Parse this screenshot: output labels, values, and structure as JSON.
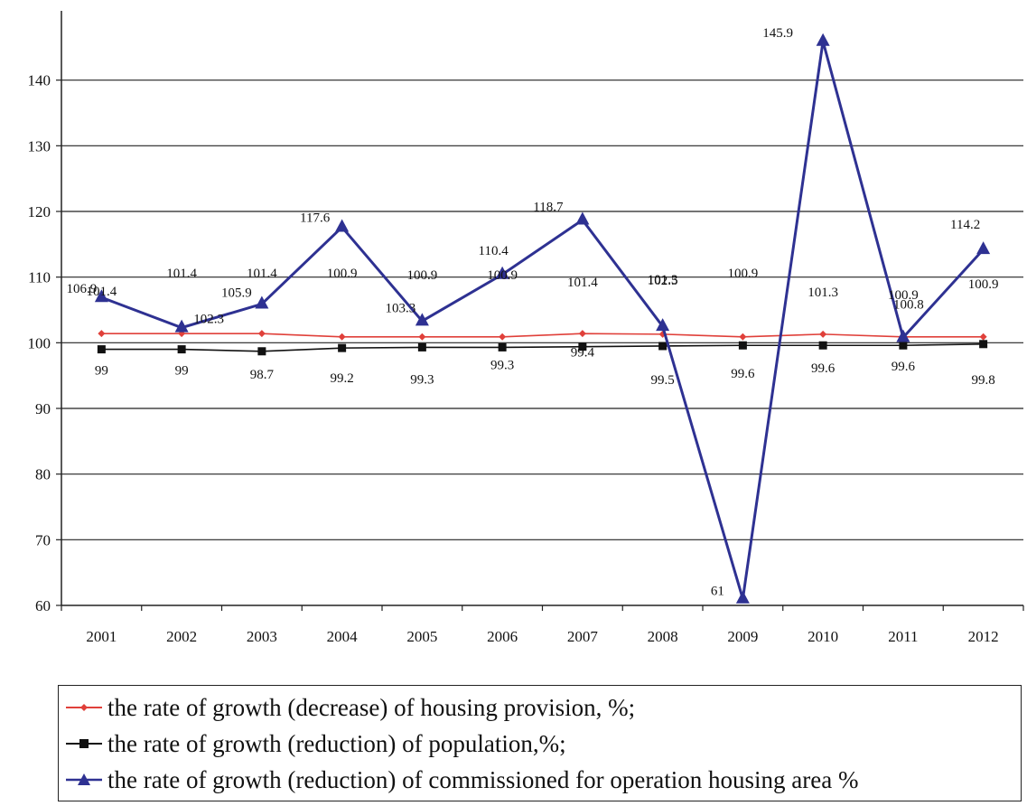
{
  "chart_data": {
    "type": "line",
    "categories": [
      "2001",
      "2002",
      "2003",
      "2004",
      "2005",
      "2006",
      "2007",
      "2008",
      "2009",
      "2010",
      "2011",
      "2012"
    ],
    "ylim": [
      60,
      150
    ],
    "yticks": [
      60,
      70,
      80,
      90,
      100,
      110,
      120,
      130,
      140
    ],
    "grid": true,
    "legend_position": "bottom",
    "series": [
      {
        "name": "the rate of growth (decrease) of housing provision, %;",
        "color": "#e0403a",
        "marker": "diamond",
        "values": [
          101.4,
          101.4,
          101.4,
          100.9,
          100.9,
          100.9,
          101.4,
          101.3,
          100.9,
          101.3,
          100.9,
          100.9
        ],
        "labels": [
          "101.4",
          "101.4",
          "101.4",
          "100.9",
          "100.9",
          "100.9",
          "101.4",
          "101.3",
          "100.9",
          "101.3",
          "100.9",
          "100.9"
        ]
      },
      {
        "name": "the rate of growth (reduction) of population,%;",
        "color": "#111111",
        "marker": "square",
        "values": [
          99,
          99,
          98.7,
          99.2,
          99.3,
          99.3,
          99.4,
          99.5,
          99.6,
          99.6,
          99.6,
          99.8
        ],
        "labels": [
          "99",
          "99",
          "98.7",
          "99.2",
          "99.3",
          "99.3",
          "99.4",
          "99.5",
          "99.6",
          "99.6",
          "99.6",
          "99.8"
        ]
      },
      {
        "name": "the rate of growth (reduction) of commissioned for operation housing area %",
        "color": "#2e3192",
        "marker": "triangle",
        "values": [
          106.9,
          102.3,
          105.9,
          117.6,
          103.3,
          110.4,
          118.7,
          102.5,
          61,
          145.9,
          100.8,
          114.2
        ],
        "labels": [
          "106.9",
          "102.3",
          "105.9",
          "117.6",
          "103.3",
          "110.4",
          "118.7",
          "102.5",
          "61",
          "145.9",
          "100.8",
          "114.2"
        ]
      }
    ]
  }
}
